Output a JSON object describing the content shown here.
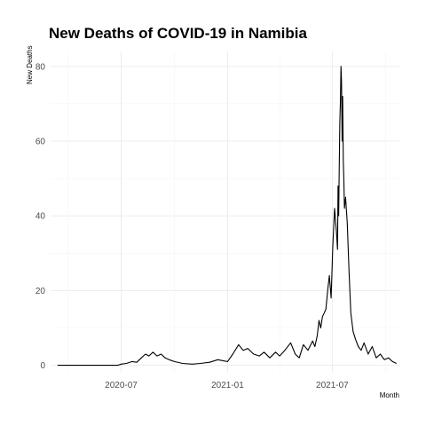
{
  "chart_data": {
    "type": "line",
    "title": "New Deaths of COVID-19 in Namibia",
    "xlabel": "Month",
    "ylabel": "New Deaths",
    "x_ticks": [
      "2020-07",
      "2021-01",
      "2021-07"
    ],
    "y_ticks": [
      0,
      20,
      40,
      60,
      80
    ],
    "xlim": [
      "2020-03-01",
      "2021-10-25"
    ],
    "ylim": [
      -2,
      84
    ],
    "grid": true,
    "series": [
      {
        "color": "#000000",
        "x": [
          "2020-03-13",
          "2020-04-15",
          "2020-05-20",
          "2020-06-25",
          "2020-07-01",
          "2020-07-10",
          "2020-07-20",
          "2020-07-28",
          "2020-08-05",
          "2020-08-12",
          "2020-08-18",
          "2020-08-25",
          "2020-09-01",
          "2020-09-08",
          "2020-09-15",
          "2020-09-22",
          "2020-10-01",
          "2020-10-15",
          "2020-11-01",
          "2020-11-15",
          "2020-12-01",
          "2020-12-15",
          "2021-01-01",
          "2021-01-10",
          "2021-01-20",
          "2021-01-28",
          "2021-02-05",
          "2021-02-15",
          "2021-02-25",
          "2021-03-05",
          "2021-03-15",
          "2021-03-25",
          "2021-04-01",
          "2021-04-10",
          "2021-04-20",
          "2021-04-28",
          "2021-05-05",
          "2021-05-12",
          "2021-05-20",
          "2021-05-28",
          "2021-06-01",
          "2021-06-05",
          "2021-06-08",
          "2021-06-11",
          "2021-06-14",
          "2021-06-17",
          "2021-06-20",
          "2021-06-23",
          "2021-06-26",
          "2021-06-29",
          "2021-07-02",
          "2021-07-05",
          "2021-07-08",
          "2021-07-10",
          "2021-07-11",
          "2021-07-12",
          "2021-07-13",
          "2021-07-14",
          "2021-07-15",
          "2021-07-16",
          "2021-07-17",
          "2021-07-18",
          "2021-07-19",
          "2021-07-20",
          "2021-07-21",
          "2021-07-22",
          "2021-07-24",
          "2021-07-27",
          "2021-07-30",
          "2021-08-02",
          "2021-08-06",
          "2021-08-10",
          "2021-08-15",
          "2021-08-20",
          "2021-08-25",
          "2021-09-01",
          "2021-09-08",
          "2021-09-15",
          "2021-09-22",
          "2021-09-29",
          "2021-10-06",
          "2021-10-13",
          "2021-10-20"
        ],
        "y": [
          0,
          0,
          0,
          0,
          0.3,
          0.5,
          1,
          0.8,
          2,
          3,
          2.5,
          3.5,
          2.5,
          3,
          2,
          1.5,
          1,
          0.5,
          0.3,
          0.5,
          0.8,
          1.5,
          1,
          3,
          5.5,
          4,
          4.5,
          3,
          2.5,
          3.5,
          2,
          3.5,
          2.5,
          4,
          6,
          3,
          2,
          5.5,
          4,
          6.5,
          5,
          8,
          12,
          10,
          13,
          14,
          15,
          20,
          24,
          18,
          32,
          42,
          36,
          31,
          48,
          40,
          52,
          65,
          70,
          80,
          76,
          60,
          72,
          55,
          50,
          42,
          45,
          38,
          25,
          14,
          9,
          7,
          5,
          4,
          6,
          3,
          5,
          2,
          3,
          1.5,
          2,
          1,
          0.5
        ]
      }
    ]
  }
}
